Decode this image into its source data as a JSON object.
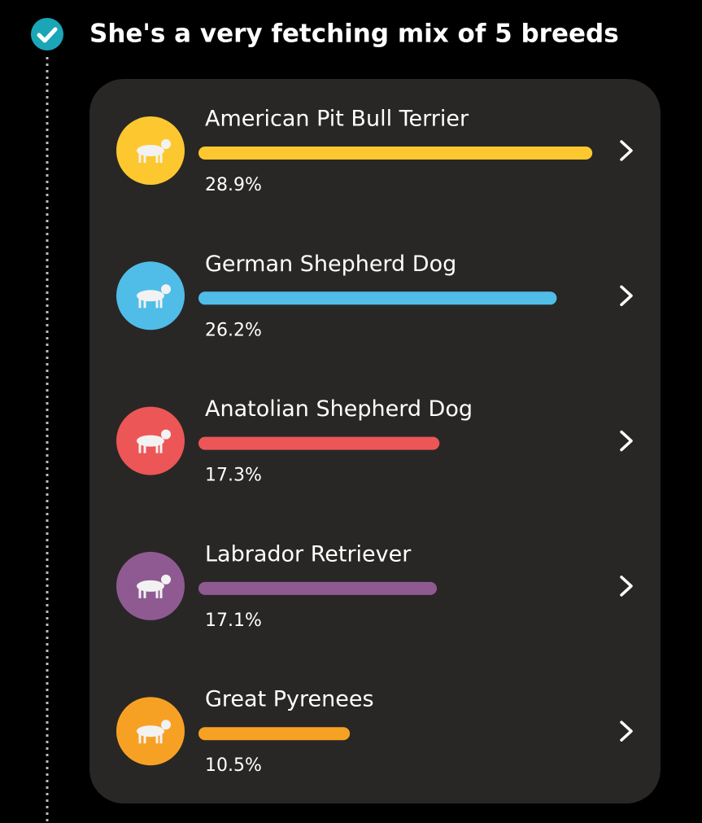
{
  "chart_data": {
    "type": "bar",
    "title": "She's a very fetching mix of 5 breeds",
    "categories": [
      "American Pit Bull Terrier",
      "German Shepherd Dog",
      "Anatolian Shepherd Dog",
      "Labrador Retriever",
      "Great Pyrenees"
    ],
    "values": [
      28.9,
      26.2,
      17.3,
      17.1,
      10.5
    ],
    "value_labels": [
      "28.9%",
      "26.2%",
      "17.3%",
      "17.1%",
      "10.5%"
    ],
    "colors": [
      "#fdc82f",
      "#4fbde8",
      "#ec5656",
      "#8f5a91",
      "#f7a124"
    ]
  }
}
